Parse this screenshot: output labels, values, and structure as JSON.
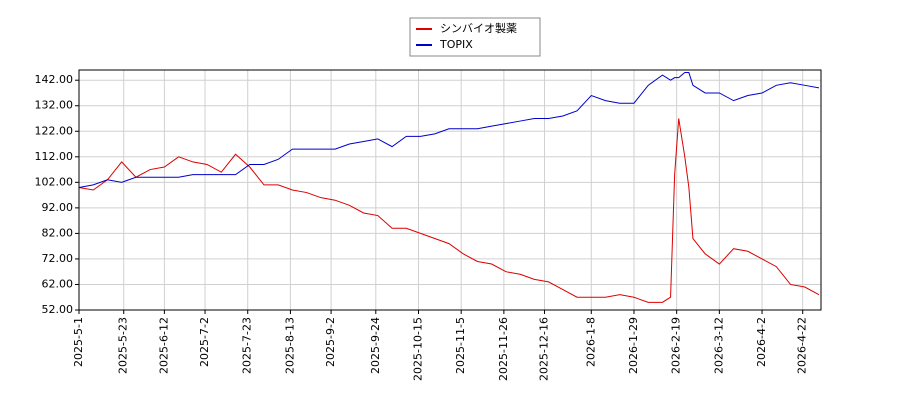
{
  "chart_data": {
    "type": "line",
    "x": [
      "2025-5-1",
      "2025-5-8",
      "2025-5-15",
      "2025-5-22",
      "2025-5-29",
      "2025-6-5",
      "2025-6-12",
      "2025-6-19",
      "2025-6-26",
      "2025-7-3",
      "2025-7-10",
      "2025-7-17",
      "2025-7-24",
      "2025-7-31",
      "2025-8-7",
      "2025-8-14",
      "2025-8-21",
      "2025-8-28",
      "2025-9-4",
      "2025-9-11",
      "2025-9-18",
      "2025-9-25",
      "2025-10-2",
      "2025-10-9",
      "2025-10-16",
      "2025-10-23",
      "2025-10-30",
      "2025-11-6",
      "2025-11-13",
      "2025-11-20",
      "2025-11-27",
      "2025-12-4",
      "2025-12-11",
      "2025-12-18",
      "2025-12-25",
      "2026-1-1",
      "2026-1-8",
      "2026-1-15",
      "2026-1-22",
      "2026-1-29",
      "2026-2-5",
      "2026-2-12",
      "2026-2-16",
      "2026-2-18",
      "2026-2-20",
      "2026-2-23",
      "2026-2-25",
      "2026-2-27",
      "2026-3-5",
      "2026-3-12",
      "2026-3-19",
      "2026-3-26",
      "2026-4-2",
      "2026-4-9",
      "2026-4-16",
      "2026-4-23",
      "2026-4-30"
    ],
    "series": [
      {
        "name": "シンバイオ製薬",
        "color": "#dd0000",
        "values": [
          100,
          99,
          103,
          110,
          104,
          107,
          108,
          112,
          110,
          109,
          106,
          113,
          108,
          101,
          101,
          99,
          98,
          96,
          95,
          93,
          90,
          89,
          84,
          84,
          82,
          80,
          78,
          74,
          71,
          70,
          67,
          66,
          64,
          63,
          60,
          57,
          57,
          57,
          58,
          57,
          55,
          55,
          57,
          105,
          127,
          112,
          100,
          80,
          74,
          70,
          76,
          75,
          72,
          69,
          62,
          61,
          58
        ]
      },
      {
        "name": "TOPIX",
        "color": "#0000cc",
        "values": [
          100,
          101,
          103,
          102,
          104,
          104,
          104,
          104,
          105,
          105,
          105,
          105,
          109,
          109,
          111,
          115,
          115,
          115,
          115,
          117,
          118,
          119,
          116,
          120,
          120,
          121,
          123,
          123,
          123,
          124,
          125,
          126,
          127,
          127,
          128,
          130,
          136,
          134,
          133,
          133,
          140,
          144,
          142,
          143,
          143,
          145,
          145,
          140,
          137,
          137,
          134,
          136,
          137,
          140,
          141,
          140,
          139
        ]
      }
    ],
    "xlim": [
      "2025-5-1",
      "2026-5-1"
    ],
    "xticks": [
      "2025-5-1",
      "2025-5-23",
      "2025-6-12",
      "2025-7-2",
      "2025-7-23",
      "2025-8-13",
      "2025-9-2",
      "2025-9-24",
      "2025-10-15",
      "2025-11-5",
      "2025-11-26",
      "2025-12-16",
      "2026-1-8",
      "2026-1-29",
      "2026-2-19",
      "2026-3-12",
      "2026-4-2",
      "2026-4-22"
    ],
    "ylim": [
      52,
      146
    ],
    "yticks": [
      {
        "value": 52,
        "label": "52.00"
      },
      {
        "value": 62,
        "label": "62.00"
      },
      {
        "value": 72,
        "label": "72.00"
      },
      {
        "value": 82,
        "label": "82.00"
      },
      {
        "value": 92,
        "label": "92.00"
      },
      {
        "value": 102,
        "label": "102.00"
      },
      {
        "value": 112,
        "label": "112.00"
      },
      {
        "value": 122,
        "label": "122.00"
      },
      {
        "value": 132,
        "label": "132.00"
      },
      {
        "value": 142,
        "label": "142.00"
      }
    ],
    "grid": true,
    "legend": "top"
  }
}
